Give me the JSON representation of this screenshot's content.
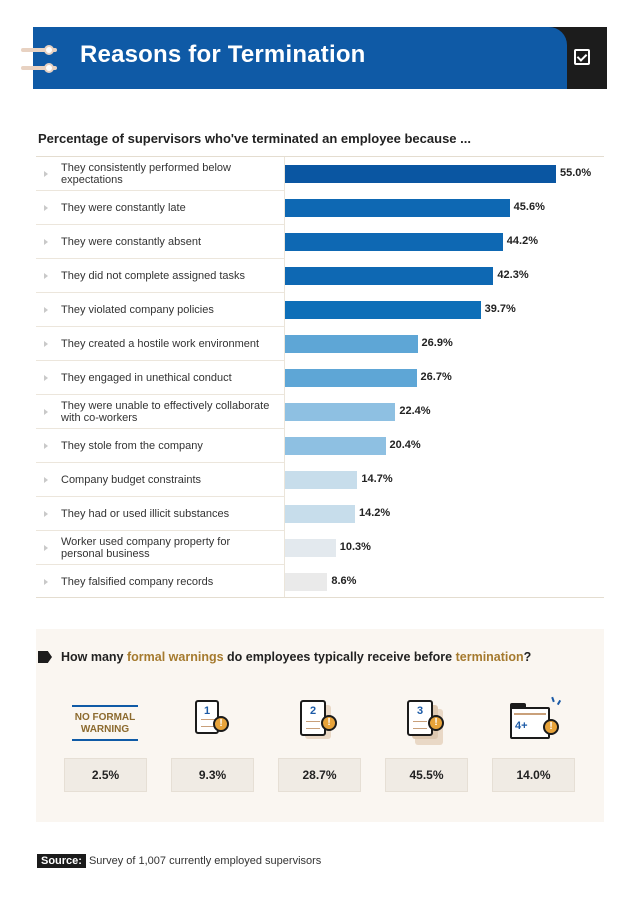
{
  "header": {
    "title": "Reasons for Termination"
  },
  "chart_data": {
    "type": "bar",
    "orientation": "horizontal",
    "title": "Percentage of supervisors who've terminated an employee because ...",
    "categories": [
      "They consistently performed below expectations",
      "They were constantly late",
      "They were constantly absent",
      "They did not complete assigned tasks",
      "They violated company policies",
      "They created a hostile work environment",
      "They engaged in unethical conduct",
      "They were unable to effectively collaborate with co-workers",
      "They stole from the company",
      "Company budget constraints",
      "They had or used illicit substances",
      "Worker used company property for personal business",
      "They falsified company records"
    ],
    "values": [
      55.0,
      45.6,
      44.2,
      42.3,
      39.7,
      26.9,
      26.7,
      22.4,
      20.4,
      14.7,
      14.2,
      10.3,
      8.6
    ],
    "value_labels": [
      "55.0%",
      "45.6%",
      "44.2%",
      "42.3%",
      "39.7%",
      "26.9%",
      "26.7%",
      "22.4%",
      "20.4%",
      "14.7%",
      "14.2%",
      "10.3%",
      "8.6%"
    ],
    "bar_colors": [
      "#0a56a2",
      "#0e68b3",
      "#0e68b3",
      "#0e68b3",
      "#0e6fb8",
      "#5ea6d6",
      "#5ea6d6",
      "#8ec0e2",
      "#8ec0e2",
      "#c7ddeb",
      "#c7ddeb",
      "#e3e9ee",
      "#eaeaea"
    ],
    "xlim": [
      0,
      55
    ],
    "grid": false,
    "legend": "none"
  },
  "warnings": {
    "question_parts": [
      "How many ",
      "formal warnings",
      " do employees typically receive before ",
      "termination",
      "?"
    ],
    "no_formal_warning_label": "NO FORMAL WARNING",
    "items": [
      {
        "icon": "no-formal-warning",
        "value": "2.5%"
      },
      {
        "icon": "document-1",
        "number": "1",
        "value": "9.3%"
      },
      {
        "icon": "document-2",
        "number": "2",
        "value": "28.7%"
      },
      {
        "icon": "document-3",
        "number": "3",
        "value": "45.5%"
      },
      {
        "icon": "folder-4plus",
        "number": "4+",
        "value": "14.0%"
      }
    ],
    "warning_glyph": "!"
  },
  "source": {
    "label": "Source:",
    "text": "Survey of 1,007 currently employed supervisors"
  },
  "colors": {
    "brand_blue": "#0f5aa6",
    "accent_gold": "#a57a2e",
    "dark": "#1c1c1c"
  }
}
